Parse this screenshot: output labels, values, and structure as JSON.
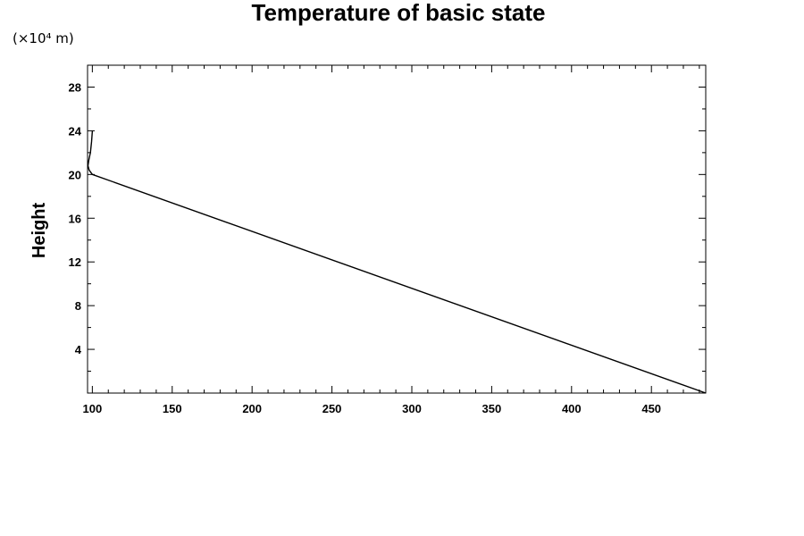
{
  "chart_data": {
    "type": "line",
    "title": "Temperature of basic state",
    "units_label": "(×10⁴ m)",
    "xlabel": "",
    "ylabel": "Height",
    "xlim": [
      97,
      484
    ],
    "ylim": [
      0,
      30
    ],
    "x_major_ticks": [
      100,
      150,
      200,
      250,
      300,
      350,
      400,
      450
    ],
    "x_minor_step": 10,
    "y_major_ticks": [
      4,
      8,
      12,
      16,
      20,
      24,
      28
    ],
    "y_minor_step": 2,
    "grid": false,
    "series": [
      {
        "x": [
          484,
          100,
          98,
          97.3,
          97.8,
          98.8,
          99.5,
          100
        ],
        "y": [
          0,
          20,
          20.4,
          20.8,
          21.3,
          22,
          23,
          24
        ]
      }
    ]
  }
}
